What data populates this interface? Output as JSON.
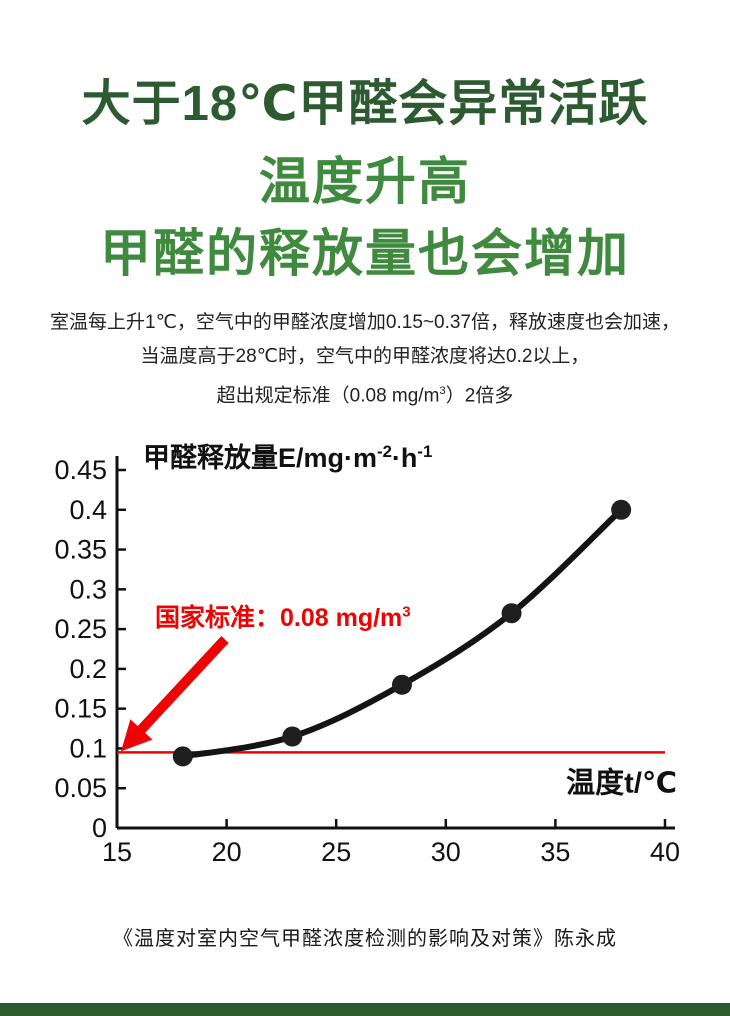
{
  "page": {
    "background": "#ffffff"
  },
  "header": {
    "line1": "大于18℃甲醛会异常活跃",
    "line2": "温度升高",
    "line3": "甲醛的释放量也会增加",
    "line1_color": "#2d5a31",
    "line23_color": "#3f8a3f"
  },
  "intro": {
    "line1": "室温每上升1℃，空气中的甲醛浓度增加0.15~0.37倍，释放速度也会加速，",
    "line2": "当温度高于28℃时，空气中的甲醛浓度将达0.2以上，",
    "line3_main": "超出规定标准（0.08 mg/m",
    "line3_sup": "3",
    "line3_end": "）2倍多"
  },
  "chart_data": {
    "type": "line",
    "title_parts": {
      "main": "甲醛释放量E/mg·m",
      "sup1": "-2",
      "mid": "·h",
      "sup2": "-1"
    },
    "xlabel": "温度t/℃",
    "x": [
      18,
      23,
      28,
      33,
      38
    ],
    "y": [
      0.09,
      0.115,
      0.18,
      0.27,
      0.4
    ],
    "xlim": [
      15,
      40
    ],
    "ylim": [
      0,
      0.45
    ],
    "x_ticks": [
      "15",
      "20",
      "25",
      "30",
      "35",
      "40"
    ],
    "y_ticks": [
      "0",
      "0.05",
      "0.1",
      "0.15",
      "0.2",
      "0.25",
      "0.3",
      "0.35",
      "0.4",
      "0.45"
    ],
    "standard_line": {
      "y": 0.095,
      "value": 0.08,
      "label_main": "国家标准：0.08 mg/m",
      "label_sup": "3",
      "color": "#ee0202"
    },
    "axis_color": "#111111",
    "line_color": "#141414",
    "point_color": "#1f1f1f",
    "grid": false,
    "legend": false
  },
  "footer": {
    "citation": "《温度对室内空气甲醛浓度检测的影响及对策》陈永成",
    "bar_color": "#2d5c2f"
  }
}
